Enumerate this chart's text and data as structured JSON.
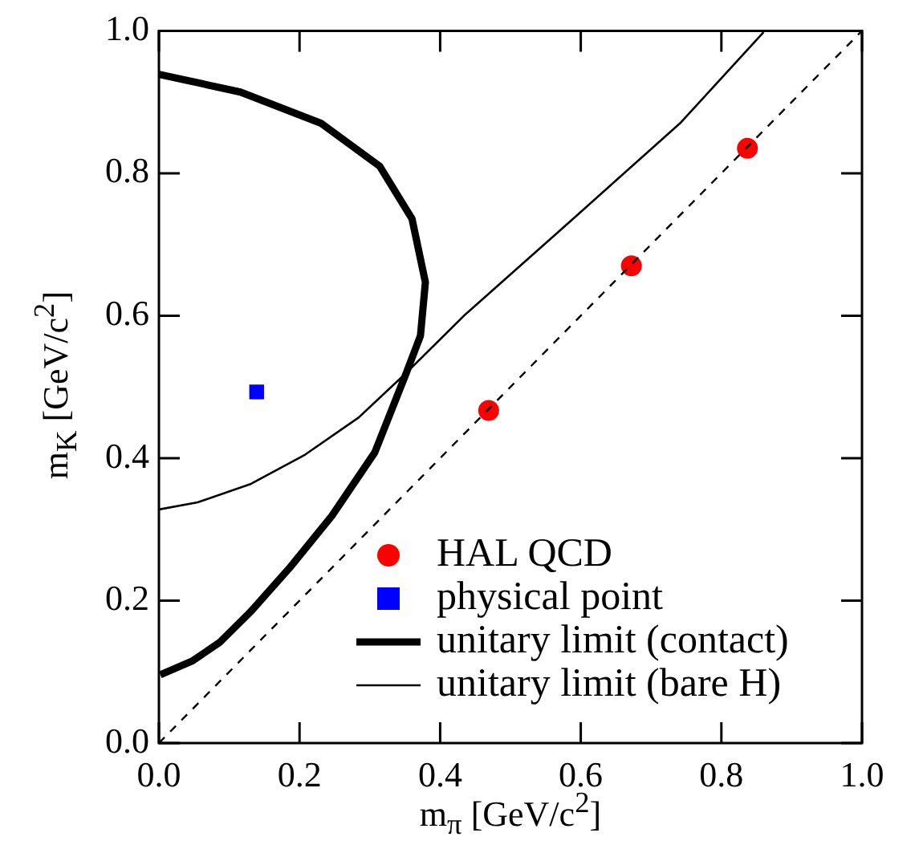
{
  "chart_data": {
    "type": "scatter",
    "xlabel": "m$_{π}$ [GeV/c$^{2}$]",
    "ylabel": "m$_{K}$ [GeV/c$^{2}$]",
    "xlim": [
      0,
      1
    ],
    "ylim": [
      0,
      1
    ],
    "xticks": [
      {
        "value": 0,
        "label": "0.0"
      },
      {
        "value": 0.2,
        "label": "0.2"
      },
      {
        "value": 0.4,
        "label": "0.4"
      },
      {
        "value": 0.6,
        "label": "0.6"
      },
      {
        "value": 0.8,
        "label": "0.8"
      },
      {
        "value": 1,
        "label": "1.0"
      }
    ],
    "yticks": [
      {
        "value": 0,
        "label": "0.0"
      },
      {
        "value": 0.2,
        "label": "0.2"
      },
      {
        "value": 0.4,
        "label": "0.4"
      },
      {
        "value": 0.6,
        "label": "0.6"
      },
      {
        "value": 0.8,
        "label": "0.8"
      },
      {
        "value": 1,
        "label": "1.0"
      }
    ],
    "grid": false,
    "legend": "bottom right",
    "series": [
      {
        "name": "HAL QCD",
        "marker": "circle",
        "color": "#ff0000",
        "x": [
          0.469,
          0.672,
          0.837
        ],
        "values": [
          0.467,
          0.67,
          0.835
        ]
      },
      {
        "name": "physical point",
        "marker": "square",
        "color": "#0000ff",
        "x": [
          0.139
        ],
        "values": [
          0.493
        ]
      },
      {
        "name": "unitary limit (contact)",
        "type": "line",
        "marker": "none",
        "line_style": "solid",
        "color": "#000000",
        "x": [
          0,
          0.116,
          0.231,
          0.314,
          0.36,
          0.379,
          0.372,
          0.352,
          0.307,
          0.246,
          0.185,
          0.131,
          0.086,
          0.047,
          0.002
        ],
        "values": [
          0.939,
          0.914,
          0.87,
          0.81,
          0.736,
          0.647,
          0.572,
          0.52,
          0.408,
          0.319,
          0.245,
          0.185,
          0.141,
          0.115,
          0.096
        ]
      },
      {
        "name": "unitary limit (bare H)",
        "type": "line",
        "marker": "none",
        "line_style": "solid",
        "color": "#000000",
        "x": [
          0,
          0.055,
          0.131,
          0.208,
          0.284,
          0.352,
          0.436,
          0.589,
          0.741,
          0.86
        ],
        "values": [
          0.328,
          0.338,
          0.364,
          0.405,
          0.457,
          0.52,
          0.602,
          0.736,
          0.87,
          0.998
        ]
      },
      {
        "type": "line",
        "marker": "none",
        "line_style": "dashed",
        "color": "#000000",
        "x": [
          0,
          1
        ],
        "values": [
          0,
          1
        ]
      }
    ]
  }
}
